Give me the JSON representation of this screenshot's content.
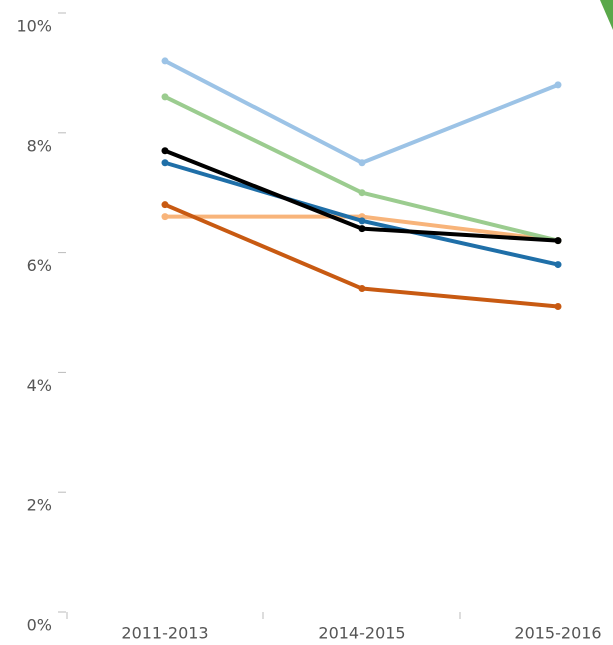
{
  "chart_data": {
    "type": "line",
    "categories": [
      "2011-2013",
      "2014-2015",
      "2015-2016"
    ],
    "series": [
      {
        "color": "#f8b47a",
        "values": [
          6.6,
          6.6,
          6.2
        ]
      },
      {
        "color": "#9bcc8f",
        "values": [
          8.6,
          7.0,
          6.2
        ]
      },
      {
        "color": "#9cc3e6",
        "values": [
          9.2,
          7.5,
          8.8
        ]
      },
      {
        "color": "#1f6fa8",
        "values": [
          7.5,
          6.53,
          5.8
        ]
      },
      {
        "color": "#c85a12",
        "values": [
          6.8,
          5.4,
          5.1
        ]
      },
      {
        "color": "#000000",
        "values": [
          7.7,
          6.4,
          6.2
        ]
      }
    ],
    "ylim": [
      0,
      10
    ],
    "yticks": [
      {
        "value": 0,
        "label": "0%"
      },
      {
        "value": 2,
        "label": "2%"
      },
      {
        "value": 4,
        "label": "4%"
      },
      {
        "value": 6,
        "label": "6%"
      },
      {
        "value": 8,
        "label": "8%"
      },
      {
        "value": 10,
        "label": "10%"
      }
    ]
  }
}
